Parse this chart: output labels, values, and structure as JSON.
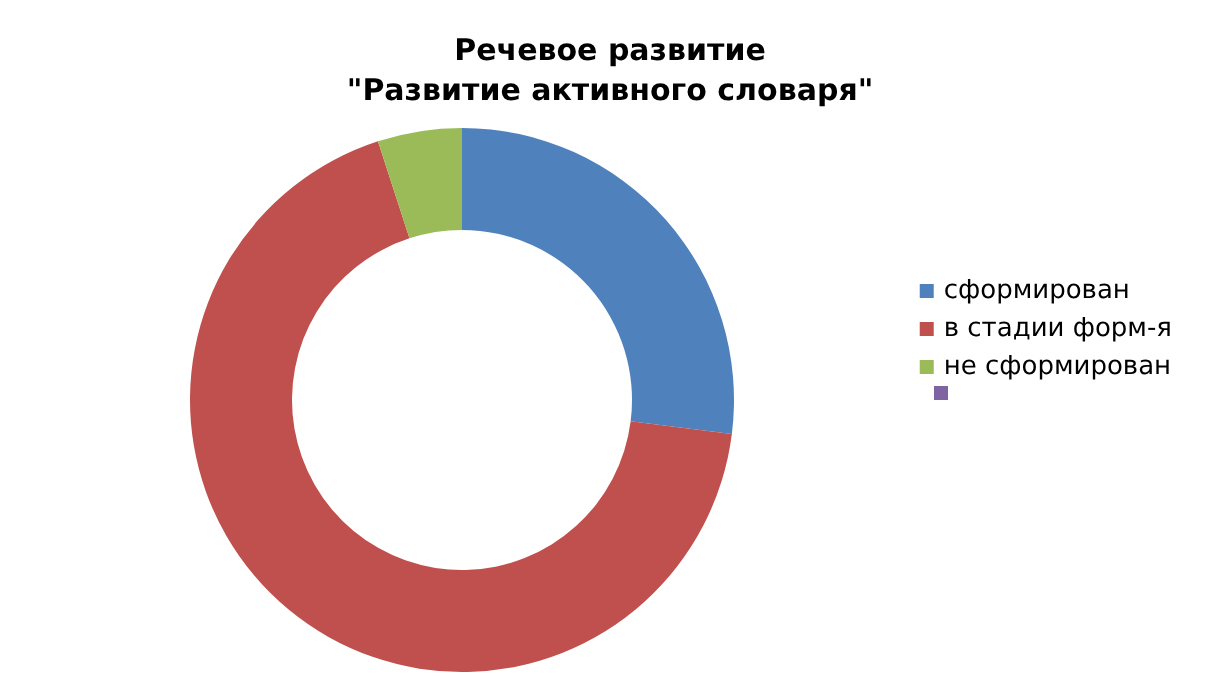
{
  "chart_data": {
    "type": "donut",
    "title": "Речевое развитие\n\"Развитие активного словаря\"",
    "categories": [
      "сформирован",
      "в стадии форм-я",
      "не сформирован"
    ],
    "values": [
      27,
      68,
      5
    ],
    "colors": [
      "#4f81bd",
      "#c0504d",
      "#9bbb59"
    ],
    "legend": "right"
  }
}
